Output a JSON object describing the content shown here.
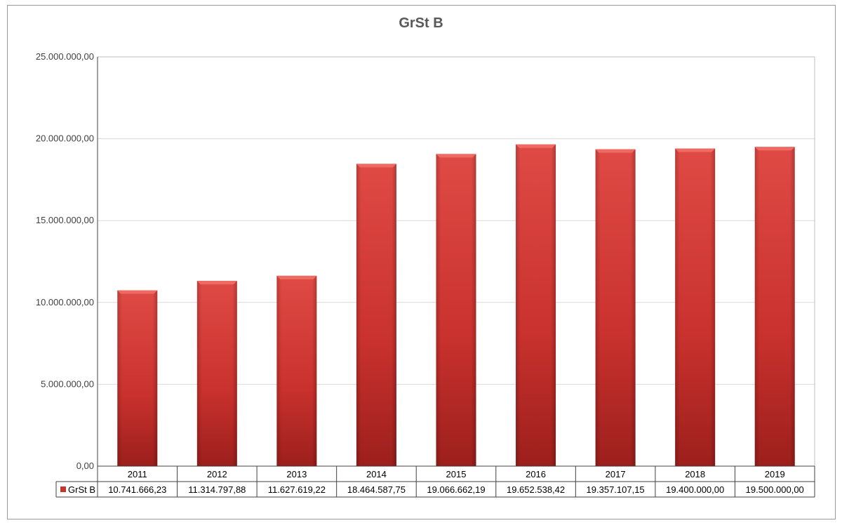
{
  "chart_data": {
    "type": "bar",
    "title": "GrSt B",
    "categories": [
      "2011",
      "2012",
      "2013",
      "2014",
      "2015",
      "2016",
      "2017",
      "2018",
      "2019"
    ],
    "series": [
      {
        "name": "GrSt B",
        "values": [
          10741666.23,
          11314797.88,
          11627619.22,
          18464587.75,
          19066662.19,
          19652538.42,
          19357107.15,
          19400000.0,
          19500000.0
        ],
        "value_labels": [
          "10.741.666,23",
          "11.314.797,88",
          "11.627.619,22",
          "18.464.587,75",
          "19.066.662,19",
          "19.652.538,42",
          "19.357.107,15",
          "19.400.000,00",
          "19.500.000,00"
        ],
        "color": "#c0392b"
      }
    ],
    "ylim": [
      0,
      25000000
    ],
    "yticks": [
      0,
      5000000,
      10000000,
      15000000,
      20000000,
      25000000
    ],
    "ytick_labels": [
      "0,00",
      "5.000.000,00",
      "10.000.000,00",
      "15.000.000,00",
      "20.000.000,00",
      "25.000.000,00"
    ],
    "grid": true,
    "legend": "data-table-left",
    "data_table": true,
    "xlabel": "",
    "ylabel": ""
  }
}
